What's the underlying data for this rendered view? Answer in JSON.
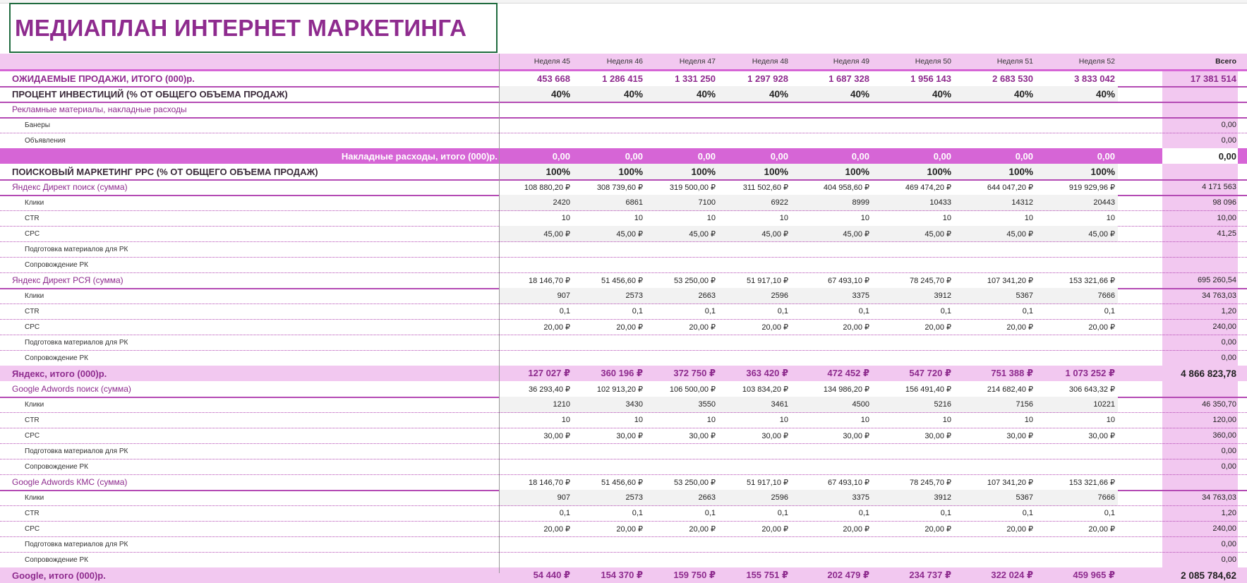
{
  "title": "МЕДИАПЛАН ИНТЕРНЕТ МАРКЕТИНГА",
  "colors": {
    "accent": "#8e2b8e",
    "pink_light": "#f2c8f0",
    "pink_dark": "#d665d6",
    "grey_row": "#f2f2f2"
  },
  "header": {
    "weeks": [
      "Неделя  45",
      "Неделя  46",
      "Неделя  47",
      "Неделя  48",
      "Неделя  49",
      "Неделя  50",
      "Неделя  51",
      "Неделя  52"
    ],
    "total": "Всего"
  },
  "rows": [
    {
      "label": "ОЖИДАЕМЫЕ ПРОДАЖИ, ИТОГО (000)р.",
      "kind": "sales",
      "values": [
        "453 668",
        "1 286 415",
        "1 331 250",
        "1 297 928",
        "1 687 328",
        "1 956 143",
        "2 683 530",
        "3 833 042"
      ],
      "total": "17 381 514"
    },
    {
      "label": "ПРОЦЕНТ ИНВЕСТИЦИЙ (% ОТ ОБЩЕГО ОБЪЕМА ПРОДАЖ)",
      "kind": "percent",
      "values": [
        "40%",
        "40%",
        "40%",
        "40%",
        "40%",
        "40%",
        "40%",
        "40%"
      ],
      "total": ""
    },
    {
      "label": "Рекламные материалы, накладные расходы",
      "kind": "cat",
      "values": [],
      "total": ""
    },
    {
      "label": "Банеры",
      "kind": "small",
      "values": [],
      "total": "0,00"
    },
    {
      "label": "Объявления",
      "kind": "small",
      "values": [],
      "total": "0,00"
    },
    {
      "label": "Накладные расходы, итого (000)р.",
      "kind": "overhead",
      "values": [
        "0,00",
        "0,00",
        "0,00",
        "0,00",
        "0,00",
        "0,00",
        "0,00",
        "0,00"
      ],
      "total": "0,00"
    },
    {
      "label": "ПОИСКОВЫЙ МАРКЕТИНГ PPC (% ОТ ОБЩЕГО ОБЪЕМА ПРОДАЖ)",
      "kind": "percent",
      "values": [
        "100%",
        "100%",
        "100%",
        "100%",
        "100%",
        "100%",
        "100%",
        "100%"
      ],
      "total": ""
    },
    {
      "label": "Яндекс Директ поиск (сумма)",
      "kind": "cat",
      "values": [
        "108  880,20  ₽",
        "308  739,60  ₽",
        "319  500,00  ₽",
        "311  502,60  ₽",
        "404  958,60  ₽",
        "469  474,20  ₽",
        "644  047,20  ₽",
        "919  929,96  ₽"
      ],
      "total": "4  171  563"
    },
    {
      "label": "Клики",
      "kind": "small",
      "grey": true,
      "values": [
        "2420",
        "6861",
        "7100",
        "6922",
        "8999",
        "10433",
        "14312",
        "20443"
      ],
      "total": "98  096"
    },
    {
      "label": "CTR",
      "kind": "small",
      "values": [
        "10",
        "10",
        "10",
        "10",
        "10",
        "10",
        "10",
        "10"
      ],
      "total": "10,00"
    },
    {
      "label": "CPC",
      "kind": "small",
      "grey": true,
      "values": [
        "45,00  ₽",
        "45,00  ₽",
        "45,00  ₽",
        "45,00  ₽",
        "45,00  ₽",
        "45,00  ₽",
        "45,00  ₽",
        "45,00  ₽"
      ],
      "total": "41,25"
    },
    {
      "label": "Подготовка  материалов  для  РК",
      "kind": "small",
      "values": [],
      "total": ""
    },
    {
      "label": "Сопровождение  РК",
      "kind": "small",
      "values": [],
      "total": ""
    },
    {
      "label": "Яндекс Директ РСЯ (сумма)",
      "kind": "cat",
      "values": [
        "18  146,70  ₽",
        "51  456,60  ₽",
        "53  250,00  ₽",
        "51  917,10  ₽",
        "67  493,10  ₽",
        "78  245,70  ₽",
        "107  341,20  ₽",
        "153  321,66  ₽"
      ],
      "total": "695  260,54"
    },
    {
      "label": "Клики",
      "kind": "small",
      "grey": true,
      "values": [
        "907",
        "2573",
        "2663",
        "2596",
        "3375",
        "3912",
        "5367",
        "7666"
      ],
      "total": "34  763,03"
    },
    {
      "label": "CTR",
      "kind": "small",
      "values": [
        "0,1",
        "0,1",
        "0,1",
        "0,1",
        "0,1",
        "0,1",
        "0,1",
        "0,1"
      ],
      "total": "1,20"
    },
    {
      "label": "CPC",
      "kind": "small",
      "values": [
        "20,00  ₽",
        "20,00  ₽",
        "20,00  ₽",
        "20,00  ₽",
        "20,00  ₽",
        "20,00  ₽",
        "20,00  ₽",
        "20,00  ₽"
      ],
      "total": "240,00"
    },
    {
      "label": "Подготовка  материалов  для  РК",
      "kind": "small",
      "values": [],
      "total": "0,00"
    },
    {
      "label": "Сопровождение  РК",
      "kind": "small",
      "values": [],
      "total": "0,00"
    },
    {
      "label": "Яндекс, итого (000)р.",
      "kind": "subtotal",
      "values": [
        "127 027 ₽",
        "360 196 ₽",
        "372 750 ₽",
        "363 420 ₽",
        "472 452 ₽",
        "547 720 ₽",
        "751 388 ₽",
        "1 073 252 ₽"
      ],
      "total": "4 866 823,78"
    },
    {
      "label": "Google Adwords поиск (сумма)",
      "kind": "cat",
      "values": [
        "36  293,40  ₽",
        "102  913,20  ₽",
        "106  500,00  ₽",
        "103  834,20  ₽",
        "134  986,20  ₽",
        "156  491,40  ₽",
        "214  682,40  ₽",
        "306  643,32  ₽"
      ],
      "total": ""
    },
    {
      "label": "Клики",
      "kind": "small",
      "grey": true,
      "values": [
        "1210",
        "3430",
        "3550",
        "3461",
        "4500",
        "5216",
        "7156",
        "10221"
      ],
      "total": "46  350,70"
    },
    {
      "label": "CTR",
      "kind": "small",
      "values": [
        "10",
        "10",
        "10",
        "10",
        "10",
        "10",
        "10",
        "10"
      ],
      "total": "120,00"
    },
    {
      "label": "CPC",
      "kind": "small",
      "values": [
        "30,00  ₽",
        "30,00  ₽",
        "30,00  ₽",
        "30,00  ₽",
        "30,00  ₽",
        "30,00  ₽",
        "30,00  ₽",
        "30,00  ₽"
      ],
      "total": "360,00"
    },
    {
      "label": "Подготовка  материалов  для  РК",
      "kind": "small",
      "values": [],
      "total": "0,00"
    },
    {
      "label": "Сопровождение  РК",
      "kind": "small",
      "values": [],
      "total": "0,00"
    },
    {
      "label": "Google Adwords КМС (сумма)",
      "kind": "cat",
      "values": [
        "18  146,70  ₽",
        "51  456,60  ₽",
        "53  250,00  ₽",
        "51  917,10  ₽",
        "67  493,10  ₽",
        "78  245,70  ₽",
        "107  341,20  ₽",
        "153  321,66  ₽"
      ],
      "total": ""
    },
    {
      "label": "Клики",
      "kind": "small",
      "grey": true,
      "values": [
        "907",
        "2573",
        "2663",
        "2596",
        "3375",
        "3912",
        "5367",
        "7666"
      ],
      "total": "34  763,03"
    },
    {
      "label": "CTR",
      "kind": "small",
      "values": [
        "0,1",
        "0,1",
        "0,1",
        "0,1",
        "0,1",
        "0,1",
        "0,1",
        "0,1"
      ],
      "total": "1,20"
    },
    {
      "label": "CPC",
      "kind": "small",
      "values": [
        "20,00  ₽",
        "20,00  ₽",
        "20,00  ₽",
        "20,00  ₽",
        "20,00  ₽",
        "20,00  ₽",
        "20,00  ₽",
        "20,00  ₽"
      ],
      "total": "240,00"
    },
    {
      "label": "Подготовка  материалов  для  РК",
      "kind": "small",
      "values": [],
      "total": "0,00"
    },
    {
      "label": "Сопровождение  РК",
      "kind": "small",
      "values": [],
      "total": "0,00"
    },
    {
      "label": "Google, итого (000)р.",
      "kind": "subtotal",
      "values": [
        "54 440 ₽",
        "154 370 ₽",
        "159 750 ₽",
        "155 751 ₽",
        "202 479 ₽",
        "234 737 ₽",
        "322 024 ₽",
        "459 965 ₽"
      ],
      "total": "2 085 784,62"
    }
  ]
}
